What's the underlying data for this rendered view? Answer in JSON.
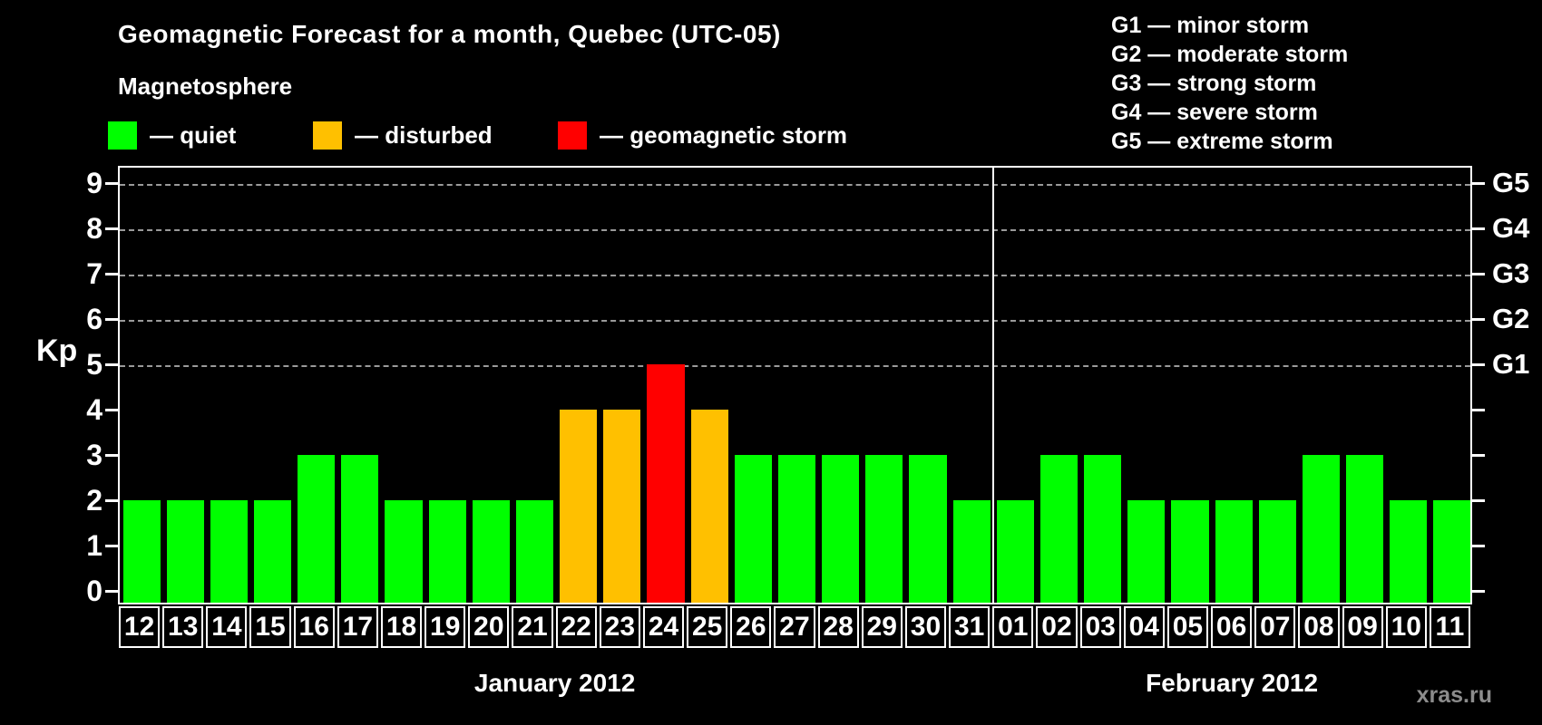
{
  "title": "Geomagnetic Forecast for a month, Quebec (UTC-05)",
  "subtitle": "Magnetosphere",
  "legend": {
    "items": [
      {
        "label": "— quiet",
        "status": "quiet",
        "color": "#00ff00"
      },
      {
        "label": "— disturbed",
        "status": "disturbed",
        "color": "#ffc000"
      },
      {
        "label": "— geomagnetic storm",
        "status": "storm",
        "color": "#ff0000"
      }
    ]
  },
  "g_scale_legend": [
    "G1 — minor storm",
    "G2 — moderate storm",
    "G3 — strong storm",
    "G4 — severe storm",
    "G5 — extreme storm"
  ],
  "watermark": "xras.ru",
  "chart_data": {
    "type": "bar",
    "title": "Geomagnetic Forecast for a month, Quebec (UTC-05)",
    "ylabel": "Kp",
    "ylim": [
      0,
      9
    ],
    "yticks": [
      0,
      1,
      2,
      3,
      4,
      5,
      6,
      7,
      8,
      9
    ],
    "grid": "dashed horizontal lines at Kp 5,6,7,8,9 only",
    "legend_position": "top",
    "right_axis_labels": [
      {
        "kp": 5,
        "label": "G1"
      },
      {
        "kp": 6,
        "label": "G2"
      },
      {
        "kp": 7,
        "label": "G3"
      },
      {
        "kp": 8,
        "label": "G4"
      },
      {
        "kp": 9,
        "label": "G5"
      }
    ],
    "categories": [
      "12",
      "13",
      "14",
      "15",
      "16",
      "17",
      "18",
      "19",
      "20",
      "21",
      "22",
      "23",
      "24",
      "25",
      "26",
      "27",
      "28",
      "29",
      "30",
      "31",
      "01",
      "02",
      "03",
      "04",
      "05",
      "06",
      "07",
      "08",
      "09",
      "10",
      "11"
    ],
    "values": [
      2,
      2,
      2,
      2,
      3,
      3,
      2,
      2,
      2,
      2,
      4,
      4,
      5,
      4,
      3,
      3,
      3,
      3,
      3,
      2,
      2,
      3,
      3,
      2,
      2,
      2,
      2,
      3,
      3,
      2,
      2
    ],
    "status_colors": {
      "quiet": "#00ff00",
      "disturbed": "#ffc000",
      "storm": "#ff0000"
    },
    "status_rule": {
      "quiet_max_kp": 3,
      "disturbed_kp": 4,
      "storm_min_kp": 5
    },
    "months": [
      {
        "label": "January 2012",
        "start_index": 0,
        "days": 20
      },
      {
        "label": "February 2012",
        "start_index": 20,
        "days": 11
      }
    ]
  }
}
